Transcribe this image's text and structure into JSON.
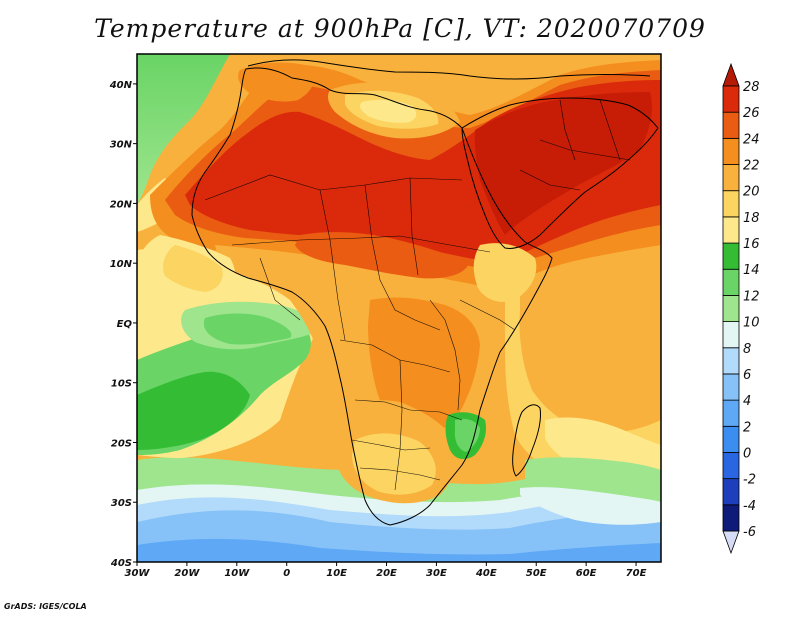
{
  "title": "Temperature at 900hPa [C], VT: 2020070709",
  "credit": "GrADS: IGES/COLA",
  "map": {
    "projection": "lat-lon",
    "lon_range": [
      -30,
      75
    ],
    "lat_range": [
      -40,
      45
    ],
    "lon_ticks": [
      {
        "value": -30,
        "label": "30W"
      },
      {
        "value": -20,
        "label": "20W"
      },
      {
        "value": -10,
        "label": "10W"
      },
      {
        "value": 0,
        "label": "0"
      },
      {
        "value": 10,
        "label": "10E"
      },
      {
        "value": 20,
        "label": "20E"
      },
      {
        "value": 30,
        "label": "30E"
      },
      {
        "value": 40,
        "label": "40E"
      },
      {
        "value": 50,
        "label": "50E"
      },
      {
        "value": 60,
        "label": "60E"
      },
      {
        "value": 70,
        "label": "70E"
      }
    ],
    "lat_ticks": [
      {
        "value": 40,
        "label": "40N"
      },
      {
        "value": 30,
        "label": "30N"
      },
      {
        "value": 20,
        "label": "20N"
      },
      {
        "value": 10,
        "label": "10N"
      },
      {
        "value": 0,
        "label": "EQ"
      },
      {
        "value": -10,
        "label": "10S"
      },
      {
        "value": -20,
        "label": "20S"
      },
      {
        "value": -30,
        "label": "30S"
      },
      {
        "value": -40,
        "label": "40S"
      }
    ]
  },
  "colorbar": {
    "unit": "C",
    "levels": [
      -6,
      -4,
      -2,
      0,
      2,
      4,
      6,
      8,
      10,
      12,
      14,
      16,
      18,
      20,
      22,
      24,
      26,
      28
    ],
    "labels": [
      "-6",
      "-4",
      "-2",
      "0",
      "2",
      "4",
      "6",
      "8",
      "10",
      "12",
      "14",
      "16",
      "18",
      "20",
      "22",
      "24",
      "26",
      "28"
    ],
    "colors": [
      "#d7dcf6",
      "#0f1b78",
      "#1d3fbb",
      "#2a66e1",
      "#3c8df0",
      "#5ea8f6",
      "#86c2f8",
      "#b2dafa",
      "#e3f6f4",
      "#9ee58d",
      "#6ad466",
      "#34bc35",
      "#fde88b",
      "#fcd462",
      "#f9b13d",
      "#f48e1f",
      "#ea5c12",
      "#db2a0b",
      "#b41a05"
    ]
  }
}
